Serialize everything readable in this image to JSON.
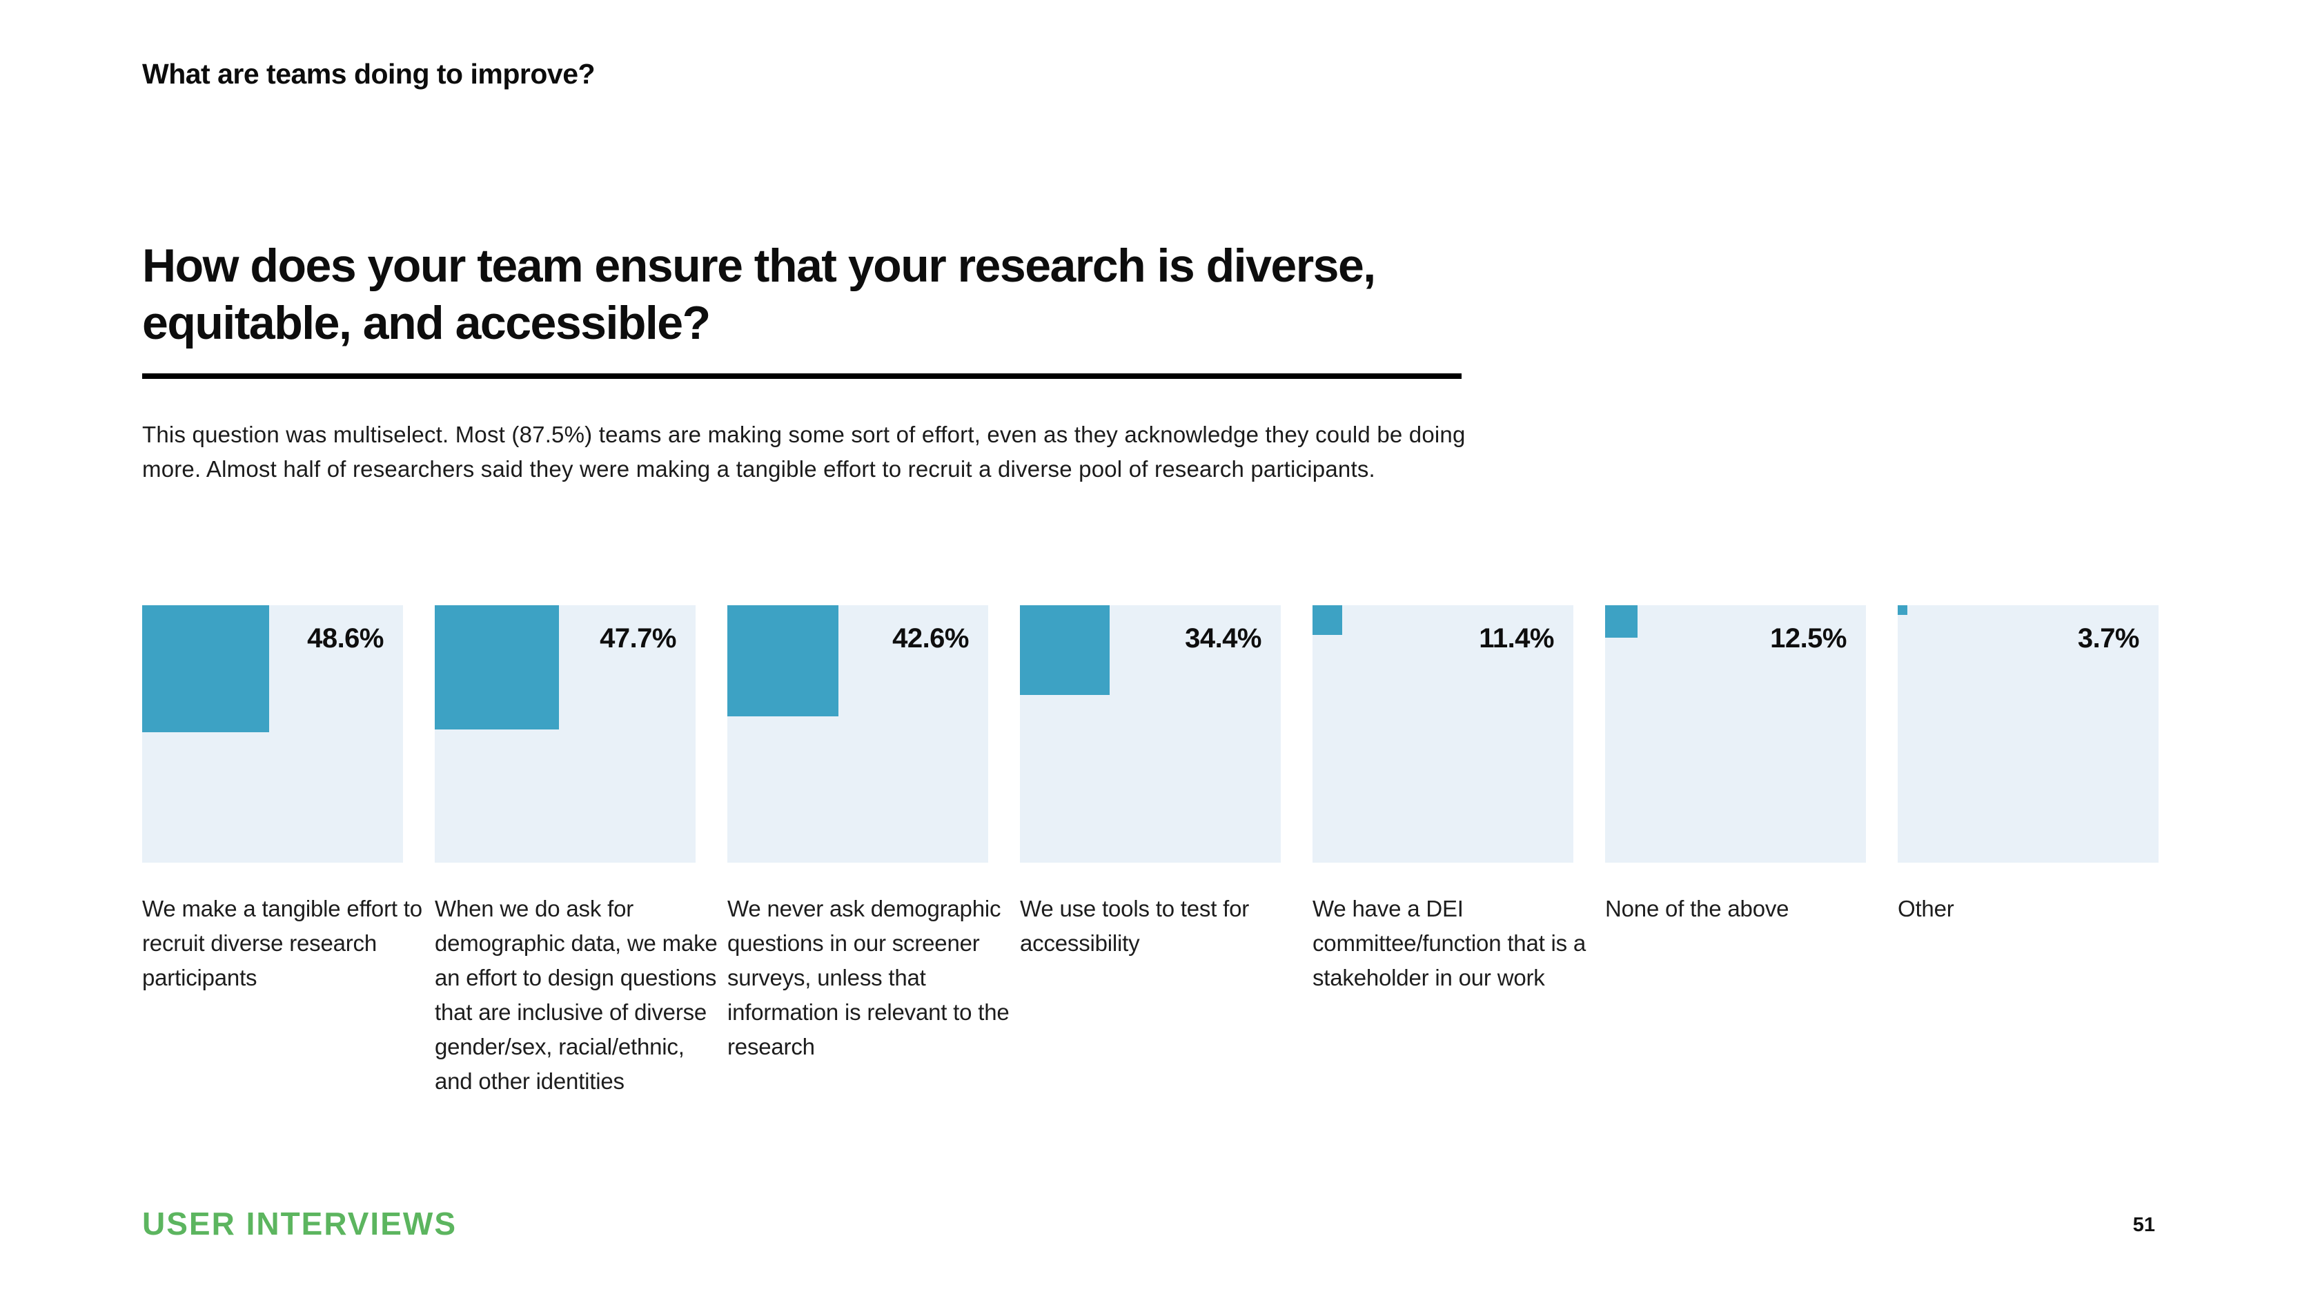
{
  "header": {
    "eyebrow": "What are teams doing to improve?",
    "title_line1": "How does your team ensure that your research is diverse,",
    "title_line2": "equitable, and accessible?",
    "summary": "This question was multiselect. Most (87.5%) teams are making some sort of effort, even as they acknowledge they could be doing more. Almost half of researchers said they were making a tangible effort to recruit a diverse pool of research participants."
  },
  "chart_data": {
    "type": "bar",
    "variant": "proportional-square-tiles",
    "title": "How does your team ensure that your research is diverse, equitable, and accessible?",
    "unit": "%",
    "categories": [
      "We make a tangible effort to recruit diverse research participants",
      "When we do ask for demographic data, we make an effort to design questions that are inclusive of diverse gender/sex, racial/ethnic, and other identities",
      "We never ask demographic questions in our screener surveys, unless that information is relevant to the research",
      "We use tools to test for accessibility",
      "We have a DEI committee/function that is a stakeholder in our work",
      "None of the above",
      "Other"
    ],
    "values": [
      48.6,
      47.7,
      42.6,
      34.4,
      11.4,
      12.5,
      3.7
    ],
    "value_labels": [
      "48.6%",
      "47.7%",
      "42.6%",
      "34.4%",
      "11.4%",
      "12.5%",
      "3.7%"
    ],
    "value_range": [
      0,
      100
    ],
    "legend": "none",
    "grid": false,
    "colors": {
      "square": "#3DA2C4",
      "tile_background": "#E9F1F8"
    }
  },
  "footer": {
    "brand": "USER INTERVIEWS",
    "brand_color": "#5CB55F",
    "page_number": "51"
  }
}
